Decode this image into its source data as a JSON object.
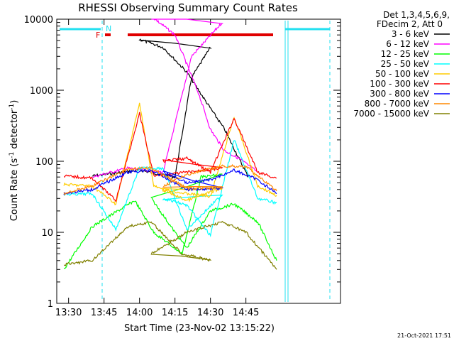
{
  "chart_data": {
    "type": "line",
    "title": "RHESSI Observing Summary Count Rates",
    "xlabel": "Start Time (23-Nov-02 13:15:22)",
    "ylabel_main": "Count Rate (s",
    "ylabel_sup1": "-1",
    "ylabel_mid": " detector",
    "ylabel_sup2": "-1",
    "ylabel_end": ")",
    "y_scale": "log",
    "ylim": [
      1,
      10000
    ],
    "xlim_minutes": [
      13.25,
      14.85
    ],
    "x_ticks": [
      "13:30",
      "13:45",
      "14:00",
      "14:15",
      "14:30",
      "14:45"
    ],
    "y_ticks": [
      "1",
      "10",
      "100",
      "1000",
      "10000"
    ],
    "legend_header": [
      "Det 1,3,4,5,6,9,",
      "FDecim 2, Att 0"
    ],
    "legend_position": "right",
    "timestamp": "21-Oct-2021 17:51",
    "flags": {
      "N": "N",
      "F": "F"
    },
    "series": [
      {
        "name": "3 - 6 keV",
        "color": "#000000",
        "points": [
          [
            13.4,
            62
          ],
          [
            13.6,
            75
          ],
          [
            13.75,
            60
          ],
          [
            13.82,
            1500
          ],
          [
            13.9,
            4000
          ],
          [
            14.0,
            5200
          ],
          [
            14.1,
            4000
          ],
          [
            14.2,
            1800
          ],
          [
            14.28,
            700
          ],
          [
            14.36,
            280
          ],
          [
            14.4,
            150
          ],
          [
            14.46,
            60
          ]
        ]
      },
      {
        "name": "6 - 12 keV",
        "color": "#ff00ff",
        "points": [
          [
            13.4,
            60
          ],
          [
            13.55,
            80
          ],
          [
            13.7,
            70
          ],
          [
            13.82,
            3000
          ],
          [
            13.95,
            9000
          ],
          [
            14.05,
            11000
          ],
          [
            14.15,
            6000
          ],
          [
            14.25,
            900
          ],
          [
            14.3,
            280
          ],
          [
            14.36,
            140
          ],
          [
            14.42,
            110
          ],
          [
            14.5,
            70
          ]
        ]
      },
      {
        "name": "12 - 25 keV",
        "color": "#00ff00",
        "points": [
          [
            13.28,
            3
          ],
          [
            13.4,
            12
          ],
          [
            13.58,
            28
          ],
          [
            13.66,
            10
          ],
          [
            13.78,
            5
          ],
          [
            13.86,
            60
          ],
          [
            13.95,
            65
          ],
          [
            14.05,
            30
          ],
          [
            14.15,
            10
          ],
          [
            14.2,
            6
          ],
          [
            14.3,
            20
          ],
          [
            14.4,
            25
          ],
          [
            14.5,
            14
          ],
          [
            14.58,
            4
          ]
        ]
      },
      {
        "name": "25 - 50 keV",
        "color": "#00ffff",
        "points": [
          [
            13.28,
            34
          ],
          [
            13.4,
            35
          ],
          [
            13.5,
            11
          ],
          [
            13.6,
            80
          ],
          [
            13.7,
            80
          ],
          [
            13.8,
            11
          ],
          [
            13.95,
            34
          ],
          [
            14.1,
            30
          ],
          [
            14.2,
            24
          ],
          [
            14.3,
            9
          ],
          [
            14.4,
            200
          ],
          [
            14.5,
            30
          ],
          [
            14.58,
            26
          ]
        ]
      },
      {
        "name": "50 - 100 keV",
        "color": "#ffcc00",
        "points": [
          [
            13.28,
            47
          ],
          [
            13.4,
            45
          ],
          [
            13.5,
            25
          ],
          [
            13.6,
            650
          ],
          [
            13.66,
            45
          ],
          [
            13.8,
            28
          ],
          [
            13.95,
            42
          ],
          [
            14.1,
            40
          ],
          [
            14.2,
            35
          ],
          [
            14.3,
            32
          ],
          [
            14.4,
            420
          ],
          [
            14.5,
            45
          ],
          [
            14.58,
            33
          ]
        ]
      },
      {
        "name": "100 - 300 keV",
        "color": "#ff0000",
        "points": [
          [
            13.28,
            62
          ],
          [
            13.4,
            58
          ],
          [
            13.5,
            28
          ],
          [
            13.6,
            470
          ],
          [
            13.66,
            62
          ],
          [
            13.8,
            70
          ],
          [
            13.95,
            80
          ],
          [
            14.1,
            100
          ],
          [
            14.2,
            110
          ],
          [
            14.3,
            70
          ],
          [
            14.4,
            400
          ],
          [
            14.5,
            70
          ],
          [
            14.58,
            58
          ]
        ]
      },
      {
        "name": "300 - 800 keV",
        "color": "#0000ff",
        "points": [
          [
            13.28,
            35
          ],
          [
            13.4,
            40
          ],
          [
            13.55,
            70
          ],
          [
            13.65,
            75
          ],
          [
            13.8,
            40
          ],
          [
            13.95,
            42
          ],
          [
            14.1,
            70
          ],
          [
            14.2,
            50
          ],
          [
            14.3,
            55
          ],
          [
            14.4,
            75
          ],
          [
            14.5,
            55
          ],
          [
            14.58,
            35
          ]
        ]
      },
      {
        "name": "800 - 7000 keV",
        "color": "#ff8800",
        "points": [
          [
            13.28,
            35
          ],
          [
            13.4,
            45
          ],
          [
            13.55,
            78
          ],
          [
            13.65,
            80
          ],
          [
            13.8,
            42
          ],
          [
            13.95,
            42
          ],
          [
            14.1,
            45
          ],
          [
            14.2,
            65
          ],
          [
            14.35,
            85
          ],
          [
            14.45,
            85
          ],
          [
            14.58,
            38
          ]
        ]
      },
      {
        "name": "7000 - 15000 keV",
        "color": "#808000",
        "points": [
          [
            13.28,
            3.5
          ],
          [
            13.4,
            4
          ],
          [
            13.55,
            12
          ],
          [
            13.65,
            14
          ],
          [
            13.78,
            5
          ],
          [
            13.9,
            4
          ],
          [
            14.05,
            5
          ],
          [
            14.2,
            10
          ],
          [
            14.35,
            14
          ],
          [
            14.45,
            10
          ],
          [
            14.58,
            3
          ]
        ]
      }
    ]
  }
}
